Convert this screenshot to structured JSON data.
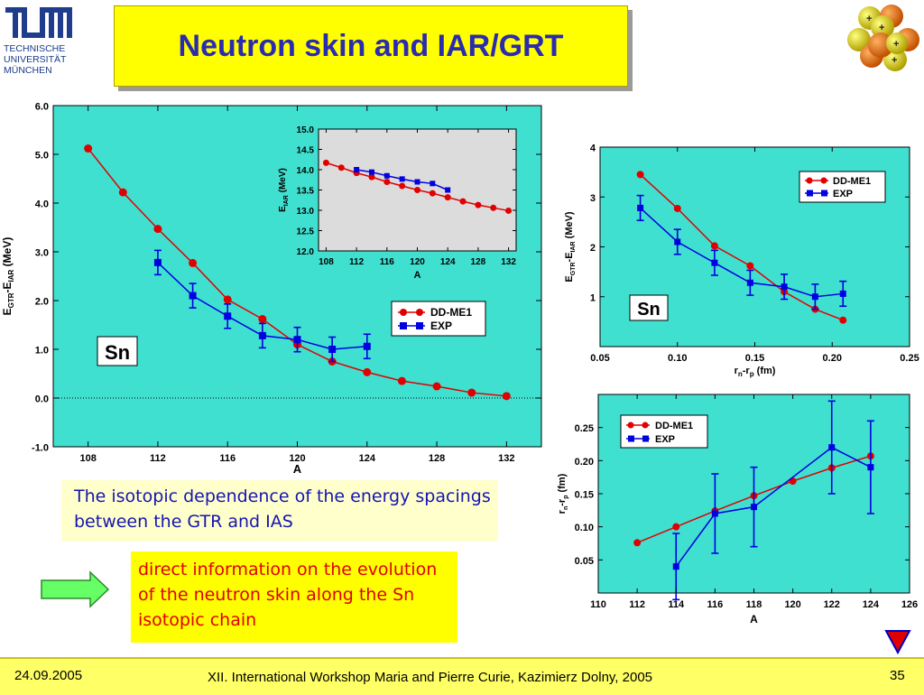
{
  "slide": {
    "title": "Neutron skin and IAR/GRT",
    "logo_lines": [
      "TECHNISCHE",
      "UNIVERSITÄT",
      "MÜNCHEN"
    ],
    "caption1": "The isotopic dependence of the energy spacings between the GTR and IAS",
    "caption2": "direct information on the evolution of the neutron skin along the Sn isotopic chain",
    "footer_date": "24.09.2005",
    "footer_conference": "XII. International Workshop Maria and Pierre Curie, Kazimierz Dolny, 2005",
    "page_number": "35",
    "colors": {
      "plot_bg": "#40e0d0",
      "theory": "#e00000",
      "exp": "#0000e0",
      "title": "#2b2bb0",
      "inset_bg": "#dcdcdc"
    }
  },
  "chart_data": [
    {
      "id": "main",
      "type": "line",
      "xlabel": "A",
      "ylabel": "E_GTR-E_IAR (MeV)",
      "ylabel_parts": [
        "E",
        "GTR",
        "-E",
        "IAR",
        " (MeV)"
      ],
      "xlim": [
        106,
        134
      ],
      "ylim": [
        -1.0,
        6.0
      ],
      "xticks": [
        108,
        112,
        116,
        120,
        124,
        128,
        132
      ],
      "xtick_labels": [
        "108",
        "112",
        "116",
        "120",
        "124",
        "128",
        "132"
      ],
      "yticks": [
        -1.0,
        0.0,
        1.0,
        2.0,
        3.0,
        4.0,
        5.0,
        6.0
      ],
      "ytick_labels": [
        "-1.0",
        "0.0",
        "1.0",
        "2.0",
        "3.0",
        "4.0",
        "5.0",
        "6.0"
      ],
      "label": "Sn",
      "legend_placement": "center-right",
      "zero_line": true,
      "series": [
        {
          "name": "DD-ME1",
          "marker": "circle",
          "x": [
            108,
            110,
            112,
            114,
            116,
            118,
            120,
            122,
            124,
            126,
            128,
            130,
            132
          ],
          "y": [
            5.12,
            4.22,
            3.47,
            2.77,
            2.02,
            1.62,
            1.1,
            0.75,
            0.53,
            0.35,
            0.24,
            0.11,
            0.04
          ]
        },
        {
          "name": "EXP",
          "marker": "square",
          "x": [
            112,
            114,
            116,
            118,
            120,
            122,
            124
          ],
          "y": [
            2.78,
            2.1,
            1.68,
            1.28,
            1.2,
            1.0,
            1.06
          ],
          "err": [
            0.25,
            0.25,
            0.25,
            0.25,
            0.25,
            0.25,
            0.25
          ]
        }
      ]
    },
    {
      "id": "inset",
      "type": "line",
      "xlabel": "A",
      "ylabel": "E_IAR (MeV)",
      "ylabel_parts": [
        "E",
        "IAR",
        " (MeV)"
      ],
      "xlim": [
        107,
        133
      ],
      "ylim": [
        12.0,
        15.0
      ],
      "xticks": [
        108,
        112,
        116,
        120,
        124,
        128,
        132
      ],
      "xtick_labels": [
        "108",
        "112",
        "116",
        "120",
        "124",
        "128",
        "132"
      ],
      "yticks": [
        12.0,
        12.5,
        13.0,
        13.5,
        14.0,
        14.5,
        15.0
      ],
      "ytick_labels": [
        "12.0",
        "12.5",
        "13.0",
        "13.5",
        "14.0",
        "14.5",
        "15.0"
      ],
      "series": [
        {
          "name": "DD-ME1",
          "marker": "circle",
          "x": [
            108,
            110,
            112,
            114,
            116,
            118,
            120,
            122,
            124,
            126,
            128,
            130,
            132
          ],
          "y": [
            14.17,
            14.05,
            13.92,
            13.82,
            13.7,
            13.6,
            13.5,
            13.42,
            13.32,
            13.22,
            13.13,
            13.06,
            12.99
          ]
        },
        {
          "name": "EXP",
          "marker": "square",
          "x": [
            112,
            114,
            116,
            118,
            120,
            122,
            124
          ],
          "y": [
            14.0,
            13.94,
            13.85,
            13.77,
            13.7,
            13.66,
            13.5
          ]
        }
      ]
    },
    {
      "id": "top-right",
      "type": "line",
      "xlabel": "r_n-r_p (fm)",
      "xlabel_parts": [
        "r",
        "n",
        "-r",
        "p",
        " (fm)"
      ],
      "ylabel": "E_GTR-E_IAR (MeV)",
      "ylabel_parts": [
        "E",
        "GTR",
        "-E",
        "IAR",
        " (MeV)"
      ],
      "xlim": [
        0.05,
        0.25
      ],
      "ylim": [
        0,
        4
      ],
      "xticks": [
        0.05,
        0.1,
        0.15,
        0.2,
        0.25
      ],
      "xtick_labels": [
        "0.05",
        "0.10",
        "0.15",
        "0.20",
        "0.25"
      ],
      "yticks": [
        1,
        2,
        3,
        4
      ],
      "ytick_labels": [
        "1",
        "2",
        "3",
        "4"
      ],
      "label": "Sn",
      "legend_placement": "top-right",
      "series": [
        {
          "name": "DD-ME1",
          "marker": "circle",
          "x": [
            0.076,
            0.1,
            0.124,
            0.147,
            0.169,
            0.189,
            0.207
          ],
          "y": [
            3.45,
            2.77,
            2.02,
            1.62,
            1.1,
            0.75,
            0.53
          ]
        },
        {
          "name": "EXP",
          "marker": "square",
          "x": [
            0.076,
            0.1,
            0.124,
            0.147,
            0.169,
            0.189,
            0.207
          ],
          "y": [
            2.78,
            2.1,
            1.68,
            1.28,
            1.2,
            1.0,
            1.06
          ],
          "err": [
            0.25,
            0.25,
            0.25,
            0.25,
            0.25,
            0.25,
            0.25
          ]
        }
      ]
    },
    {
      "id": "bottom-right",
      "type": "line",
      "xlabel": "A",
      "ylabel": "r_n-r_p (fm)",
      "ylabel_parts": [
        "r",
        "n",
        "-r",
        "p",
        " (fm)"
      ],
      "xlim": [
        110,
        126
      ],
      "ylim": [
        0.0,
        0.3
      ],
      "xticks": [
        110,
        112,
        114,
        116,
        118,
        120,
        122,
        124,
        126
      ],
      "xtick_labels": [
        "110",
        "112",
        "114",
        "116",
        "118",
        "120",
        "122",
        "124",
        "126"
      ],
      "yticks": [
        0.05,
        0.1,
        0.15,
        0.2,
        0.25
      ],
      "ytick_labels": [
        "0.05",
        "0.10",
        "0.15",
        "0.20",
        "0.25"
      ],
      "legend_placement": "top-left",
      "series": [
        {
          "name": "DD-ME1",
          "marker": "circle",
          "x": [
            112,
            114,
            116,
            118,
            120,
            122,
            124
          ],
          "y": [
            0.076,
            0.1,
            0.124,
            0.147,
            0.169,
            0.189,
            0.207
          ]
        },
        {
          "name": "EXP",
          "marker": "square",
          "x": [
            114,
            116,
            118,
            122,
            124
          ],
          "y": [
            0.04,
            0.12,
            0.13,
            0.22,
            0.19
          ],
          "err": [
            0.05,
            0.06,
            0.06,
            0.07,
            0.07
          ]
        }
      ]
    }
  ]
}
